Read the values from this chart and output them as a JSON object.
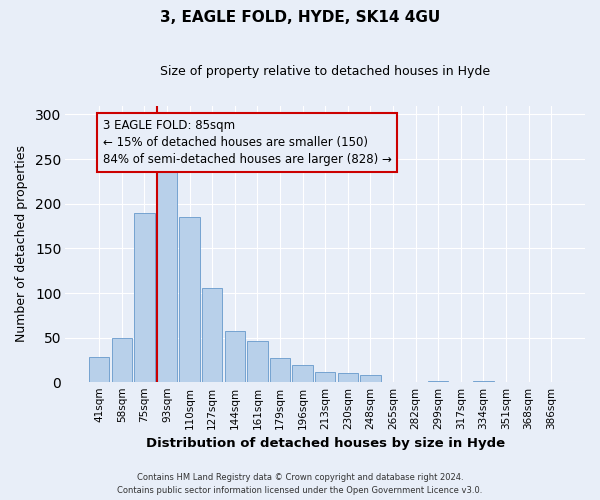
{
  "title": "3, EAGLE FOLD, HYDE, SK14 4GU",
  "subtitle": "Size of property relative to detached houses in Hyde",
  "xlabel": "Distribution of detached houses by size in Hyde",
  "ylabel": "Number of detached properties",
  "bar_color": "#b8d0ea",
  "bar_edge_color": "#6699cc",
  "background_color": "#e8eef8",
  "grid_color": "#ffffff",
  "categories": [
    "41sqm",
    "58sqm",
    "75sqm",
    "93sqm",
    "110sqm",
    "127sqm",
    "144sqm",
    "161sqm",
    "179sqm",
    "196sqm",
    "213sqm",
    "230sqm",
    "248sqm",
    "265sqm",
    "282sqm",
    "299sqm",
    "317sqm",
    "334sqm",
    "351sqm",
    "368sqm",
    "386sqm"
  ],
  "values": [
    28,
    50,
    190,
    243,
    185,
    106,
    58,
    46,
    27,
    19,
    12,
    10,
    8,
    0,
    0,
    2,
    0,
    2,
    0,
    0,
    0
  ],
  "ylim": [
    0,
    310
  ],
  "yticks": [
    0,
    50,
    100,
    150,
    200,
    250,
    300
  ],
  "property_line_bar_index": 3,
  "property_line_color": "#cc0000",
  "annotation_text": "3 EAGLE FOLD: 85sqm\n← 15% of detached houses are smaller (150)\n84% of semi-detached houses are larger (828) →",
  "annotation_box_color": "#cc0000",
  "footer_line1": "Contains HM Land Registry data © Crown copyright and database right 2024.",
  "footer_line2": "Contains public sector information licensed under the Open Government Licence v3.0."
}
